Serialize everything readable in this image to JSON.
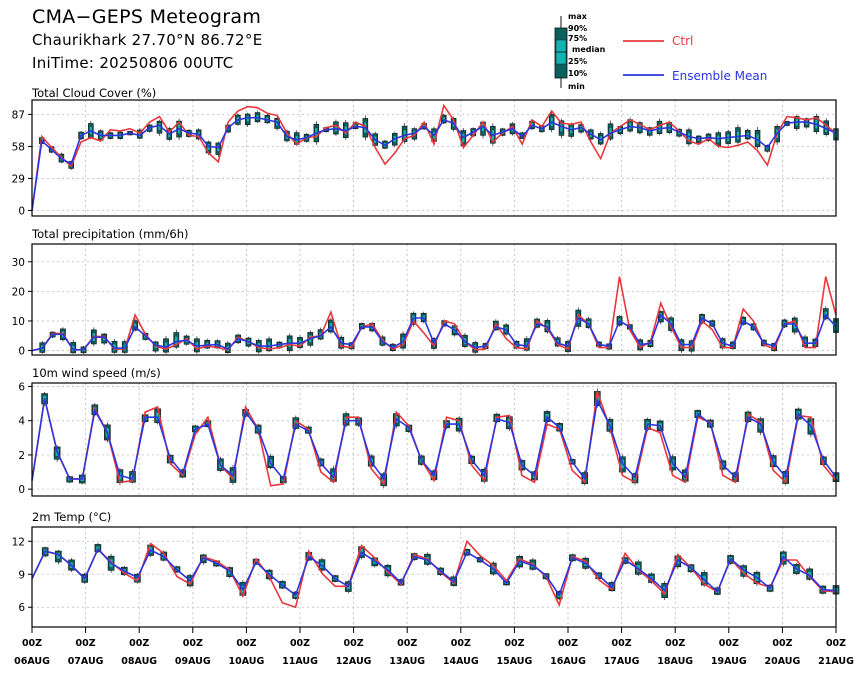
{
  "header": {
    "title": "CMA−GEPS Meteogram",
    "location": "Chaurikhark 27.70°N 86.72°E",
    "init": "IniTime: 20250806 00UTC"
  },
  "legend": {
    "box_labels": [
      "max",
      "90%",
      "75%",
      "median",
      "25%",
      "10%",
      "min"
    ],
    "ctrl": {
      "label": "Ctrl",
      "color": "#e8383d"
    },
    "mean": {
      "label": "Ensemble Mean",
      "color": "#2b35e0"
    },
    "box_color": "#12b3b3"
  },
  "x_axis": {
    "tick_top": [
      "00Z",
      "00Z",
      "00Z",
      "00Z",
      "00Z",
      "00Z",
      "00Z",
      "00Z",
      "00Z",
      "00Z",
      "00Z",
      "00Z",
      "00Z",
      "00Z",
      "00Z",
      "00Z"
    ],
    "tick_bottom": [
      "06AUG",
      "07AUG",
      "08AUG",
      "09AUG",
      "10AUG",
      "11AUG",
      "12AUG",
      "13AUG",
      "14AUG",
      "15AUG",
      "16AUG",
      "17AUG",
      "18AUG",
      "19AUG",
      "20AUG",
      "21AUG"
    ]
  },
  "chart_data": [
    {
      "type": "box",
      "title": "Total Cloud Cover (%)",
      "ylim": [
        -5,
        100
      ],
      "yticks": [
        0,
        29,
        58,
        87
      ],
      "grid": true,
      "ctrl": [
        0,
        67,
        57,
        48,
        40,
        62,
        66,
        63,
        73,
        72,
        74,
        70,
        80,
        85,
        71,
        80,
        68,
        67,
        52,
        44,
        80,
        90,
        94,
        93,
        88,
        86,
        70,
        60,
        66,
        67,
        75,
        77,
        70,
        80,
        76,
        57,
        42,
        52,
        65,
        68,
        80,
        60,
        95,
        82,
        57,
        68,
        80,
        62,
        70,
        76,
        60,
        82,
        76,
        90,
        79,
        78,
        80,
        62,
        47,
        70,
        76,
        82,
        78,
        73,
        77,
        80,
        72,
        63,
        60,
        65,
        58,
        57,
        59,
        62,
        54,
        41,
        70,
        85,
        84,
        82,
        84,
        77,
        70
      ],
      "mean": [
        0,
        63,
        55,
        47,
        42,
        68,
        72,
        68,
        68,
        68,
        70,
        68,
        75,
        77,
        69,
        74,
        70,
        69,
        58,
        57,
        75,
        82,
        84,
        84,
        82,
        80,
        67,
        64,
        66,
        70,
        73,
        74,
        72,
        76,
        75,
        64,
        59,
        65,
        68,
        70,
        76,
        68,
        82,
        79,
        66,
        71,
        76,
        68,
        71,
        74,
        67,
        77,
        74,
        80,
        76,
        73,
        75,
        69,
        64,
        70,
        73,
        76,
        75,
        72,
        74,
        75,
        71,
        67,
        65,
        66,
        65,
        66,
        67,
        68,
        64,
        57,
        70,
        79,
        80,
        80,
        78,
        74,
        70
      ]
    },
    {
      "type": "box",
      "title": "Total precipitation (mm/6h)",
      "ylim": [
        -1.5,
        36
      ],
      "yticks": [
        0,
        10,
        20,
        30
      ],
      "grid": true,
      "ctrl": [
        0,
        0.8,
        5.8,
        5.8,
        0.2,
        0.3,
        4.8,
        4.8,
        0.5,
        0.5,
        12,
        5.5,
        1.5,
        0.5,
        2,
        4,
        0.5,
        1.5,
        1,
        0.2,
        4.5,
        3,
        1,
        0.5,
        1,
        2,
        1.5,
        4.5,
        5,
        13,
        1.5,
        1,
        8,
        9,
        3.5,
        0.5,
        2,
        10,
        6,
        1.5,
        10,
        9,
        3,
        0.3,
        0.5,
        9,
        4,
        1,
        0.5,
        10,
        7.5,
        2,
        0.5,
        12,
        9,
        1,
        1,
        25,
        7,
        1,
        3,
        16,
        8,
        1,
        1,
        10,
        7,
        1,
        1,
        14,
        10,
        2,
        0.5,
        9,
        10,
        1,
        1,
        25,
        12
      ],
      "mean": [
        0,
        0.8,
        5.5,
        5.5,
        0.3,
        0.3,
        4.5,
        4.5,
        0.8,
        0.8,
        8,
        5,
        1.8,
        1.2,
        3,
        3.5,
        1.5,
        1.8,
        2,
        0.5,
        4,
        3,
        1.5,
        1.5,
        2,
        2.5,
        2.5,
        4,
        5,
        8,
        2.5,
        2,
        8,
        8,
        3,
        1,
        3,
        11,
        11,
        2.5,
        9,
        7,
        3,
        1,
        1.5,
        8,
        7,
        2,
        1.5,
        9,
        8,
        2.5,
        1.5,
        11,
        9,
        2,
        1.5,
        10,
        8,
        2,
        2.5,
        12,
        9,
        2,
        2,
        11,
        9,
        2.5,
        1.5,
        10,
        8,
        2.5,
        1.5,
        9,
        9,
        2.5,
        2.5,
        12,
        8
      ]
    },
    {
      "type": "box",
      "title": "10m wind speed (m/s)",
      "ylim": [
        -0.4,
        6.2
      ],
      "yticks": [
        0,
        2,
        4,
        6
      ],
      "grid": true,
      "ctrl": [
        0.5,
        5.3,
        2.2,
        0.6,
        0.6,
        4.7,
        3.3,
        0.4,
        0.5,
        4.5,
        4.8,
        1.5,
        0.8,
        3.2,
        4.2,
        1.4,
        0.6,
        4.8,
        3.5,
        0.2,
        0.3,
        4,
        3.5,
        1,
        0.4,
        4.2,
        4.2,
        1.2,
        0.3,
        4.5,
        3.7,
        1.7,
        0.5,
        4.2,
        4,
        1.4,
        0.5,
        4.2,
        4.3,
        0.8,
        0.4,
        3.8,
        3.5,
        1.1,
        0.4,
        5.7,
        3.6,
        0.8,
        0.4,
        3.6,
        3.3,
        0.8,
        0.4,
        4.2,
        3.9,
        0.8,
        0.4,
        4.4,
        3.9,
        1.1,
        0.4,
        4.3,
        4.2,
        1.4,
        0.5
      ],
      "mean": [
        0.5,
        5.3,
        2.2,
        0.6,
        0.6,
        4.6,
        3.3,
        0.8,
        0.6,
        4.2,
        4.2,
        1.8,
        0.9,
        3.5,
        3.8,
        1.4,
        0.8,
        4.5,
        3.5,
        1.5,
        0.6,
        3.8,
        3.4,
        1.5,
        0.7,
        4,
        4,
        1.6,
        0.6,
        4.1,
        3.6,
        1.7,
        0.8,
        3.8,
        3.8,
        1.7,
        0.8,
        4.1,
        3.9,
        1.4,
        0.8,
        4.2,
        3.6,
        1.6,
        0.6,
        5.2,
        3.7,
        1.5,
        0.7,
        3.8,
        3.7,
        1.5,
        0.7,
        4.4,
        3.8,
        1.4,
        0.7,
        4.2,
        3.8,
        1.6,
        0.7,
        4.4,
        3.7,
        1.7,
        0.7
      ]
    },
    {
      "type": "box",
      "title": "2m Temp (°C)",
      "ylim": [
        4.2,
        13.3
      ],
      "yticks": [
        6,
        9,
        12
      ],
      "grid": true,
      "ctrl": [
        8.6,
        11.1,
        10.8,
        9.8,
        8.6,
        11.3,
        10.1,
        9.1,
        8.4,
        11.8,
        10.9,
        8.8,
        8.1,
        10.6,
        10.2,
        9.4,
        7,
        10.4,
        8.8,
        6.4,
        6,
        11.1,
        9.1,
        7.9,
        7.9,
        11.6,
        10.5,
        9.2,
        8.1,
        10.8,
        10.4,
        9.2,
        8.2,
        12,
        10.7,
        9.8,
        8.4,
        10.4,
        9.9,
        8.8,
        6.2,
        10.6,
        10.2,
        8.5,
        7.6,
        10.9,
        9.4,
        8.4,
        7.2,
        10.8,
        9.6,
        8.1,
        7.4,
        10.4,
        9.1,
        8.2,
        7.8,
        10.3,
        10.3,
        8.8,
        7.5,
        7.4
      ],
      "mean": [
        8.6,
        11.1,
        10.8,
        9.8,
        8.6,
        11.3,
        10,
        9.3,
        8.7,
        11.2,
        10.6,
        9.4,
        8.4,
        10.5,
        10,
        9.3,
        7.6,
        10.1,
        9,
        8,
        7.1,
        10.6,
        9.8,
        8.6,
        7.9,
        11,
        10.2,
        9.4,
        8.2,
        10.6,
        10.3,
        9.3,
        8.3,
        11,
        10.3,
        9.5,
        8.2,
        10.2,
        9.8,
        8.9,
        7.1,
        10.5,
        10,
        8.9,
        7.8,
        10.3,
        9.5,
        8.6,
        7.5,
        10.3,
        9.6,
        8.5,
        7.4,
        10.4,
        9.4,
        8.7,
        7.7,
        10.6,
        9.5,
        8.9,
        7.6,
        7.5
      ]
    }
  ]
}
